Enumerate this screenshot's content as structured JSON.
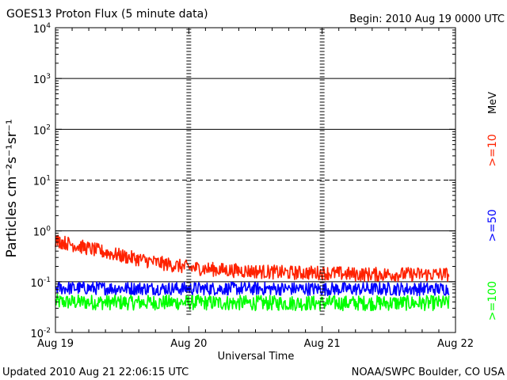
{
  "chart_data": {
    "type": "line",
    "title": "GOES13 Proton Flux (5 minute data)",
    "begin": "Begin: 2010 Aug 19 0000 UTC",
    "xlabel": "Universal Time",
    "ylabel": "Particles cm⁻²s⁻¹sr⁻¹",
    "x_tick_labels": [
      "Aug 19",
      "Aug 20",
      "Aug 21",
      "Aug 22"
    ],
    "x_range_days": [
      0,
      3
    ],
    "y_scale": "log",
    "ylim": [
      0.01,
      10000
    ],
    "y_tick_labels": [
      {
        "base": "10",
        "exp": "4"
      },
      {
        "base": "10",
        "exp": "3"
      },
      {
        "base": "10",
        "exp": "2"
      },
      {
        "base": "10",
        "exp": "1"
      },
      {
        "base": "10",
        "exp": "0"
      },
      {
        "base": "10",
        "exp": "-1"
      },
      {
        "base": "10",
        "exp": "-2"
      }
    ],
    "reference_lines": [
      {
        "value": 1000,
        "style": "solid"
      },
      {
        "value": 100,
        "style": "solid"
      },
      {
        "value": 10,
        "style": "dashed"
      },
      {
        "value": 1,
        "style": "solid"
      },
      {
        "value": 0.1,
        "style": "solid"
      }
    ],
    "legend_unit": "MeV",
    "series": [
      {
        "name": ">=10",
        "color": "#ff2200",
        "x": [
          0,
          0.25,
          0.5,
          0.75,
          1.0,
          1.25,
          1.5,
          1.75,
          2.0,
          2.25,
          2.5,
          2.75,
          2.95
        ],
        "values": [
          0.65,
          0.45,
          0.32,
          0.24,
          0.19,
          0.17,
          0.16,
          0.15,
          0.15,
          0.14,
          0.14,
          0.14,
          0.14
        ],
        "noise_decades": 0.14
      },
      {
        "name": ">=50",
        "color": "#0000ff",
        "x": [
          0,
          0.5,
          1.0,
          1.5,
          2.0,
          2.5,
          2.95
        ],
        "values": [
          0.075,
          0.074,
          0.073,
          0.073,
          0.072,
          0.072,
          0.072
        ],
        "noise_decades": 0.13
      },
      {
        "name": ">=100",
        "color": "#00ff00",
        "x": [
          0,
          0.5,
          1.0,
          1.5,
          2.0,
          2.5,
          2.95
        ],
        "values": [
          0.04,
          0.039,
          0.039,
          0.038,
          0.038,
          0.038,
          0.038
        ],
        "noise_decades": 0.15
      }
    ]
  },
  "footer": {
    "updated": "Updated 2010 Aug 21 22:06:15 UTC",
    "source": "NOAA/SWPC Boulder, CO USA"
  }
}
